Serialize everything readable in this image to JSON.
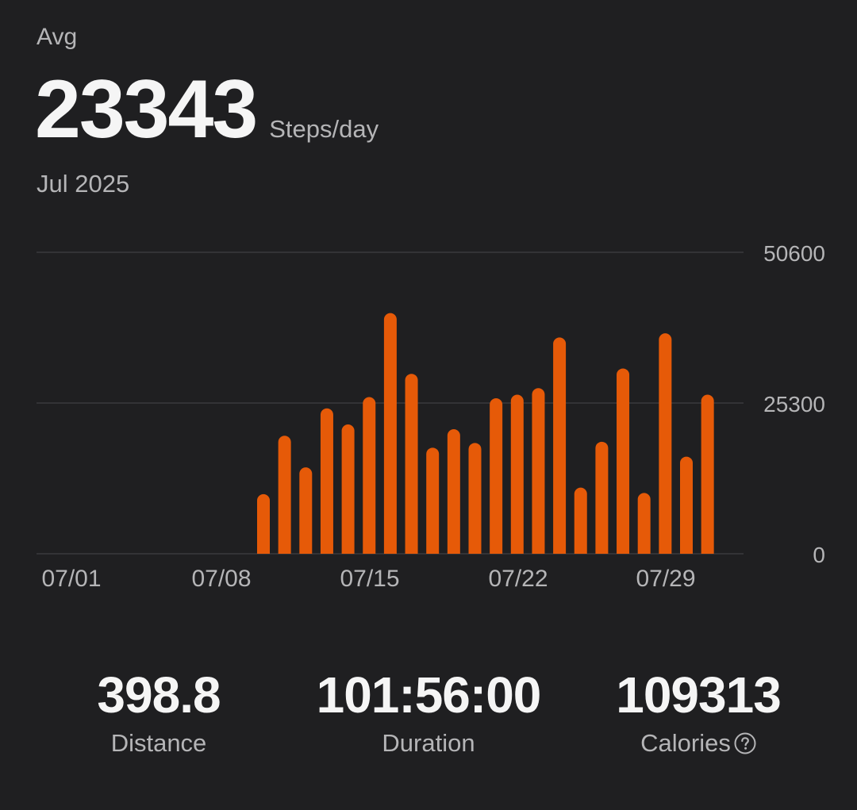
{
  "summary": {
    "avg_label": "Avg",
    "avg_value": "23343",
    "avg_unit": "Steps/day",
    "period": "Jul 2025"
  },
  "colors": {
    "background": "#1f1f21",
    "bar": "#e65a08",
    "grid": "#3a3a3d",
    "axis_text": "#b5b5b7"
  },
  "chart_data": {
    "type": "bar",
    "x_tick_labels": [
      "07/01",
      "07/08",
      "07/15",
      "07/22",
      "07/29"
    ],
    "y_tick_labels": [
      "50600",
      "25300",
      "0"
    ],
    "ylim": [
      0,
      50600
    ],
    "grid": true,
    "categories": [
      "07/01",
      "07/02",
      "07/03",
      "07/04",
      "07/05",
      "07/06",
      "07/07",
      "07/08",
      "07/09",
      "07/10",
      "07/11",
      "07/12",
      "07/13",
      "07/14",
      "07/15",
      "07/16",
      "07/17",
      "07/18",
      "07/19",
      "07/20",
      "07/21",
      "07/22",
      "07/23",
      "07/24",
      "07/25",
      "07/26",
      "07/27",
      "07/28",
      "07/29",
      "07/30",
      "07/31"
    ],
    "values": [
      0,
      0,
      0,
      0,
      0,
      0,
      0,
      0,
      0,
      10000,
      19800,
      14500,
      24400,
      21700,
      26300,
      40400,
      30200,
      17800,
      20900,
      18600,
      26100,
      26700,
      27800,
      36300,
      11100,
      18800,
      31100,
      10200,
      37000,
      16300,
      26700
    ]
  },
  "stats": [
    {
      "value": "398.8",
      "label": "Distance"
    },
    {
      "value": "101:56:00",
      "label": "Duration"
    },
    {
      "value": "109313",
      "label": "Calories",
      "icon": "help-icon"
    }
  ]
}
